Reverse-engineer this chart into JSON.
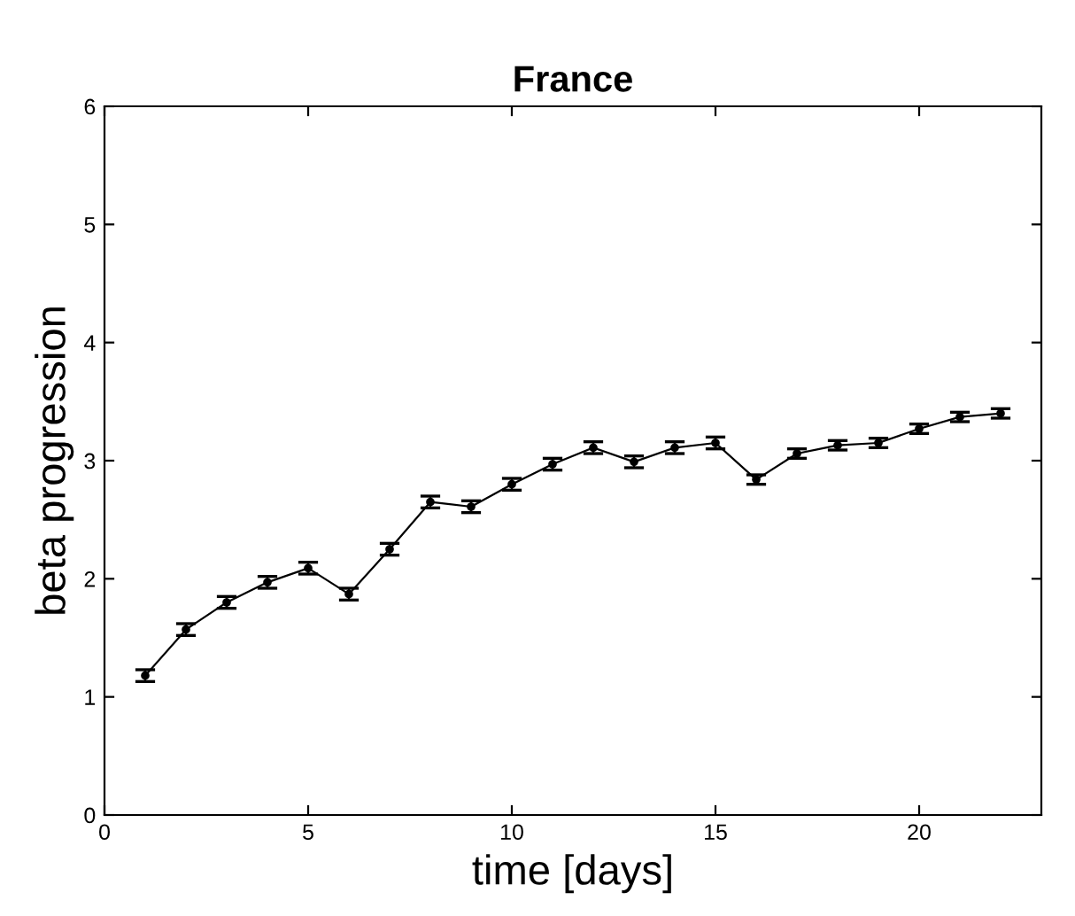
{
  "chart_data": {
    "type": "line",
    "title": "France",
    "xlabel": "time [days]",
    "ylabel": "beta progression",
    "x": [
      1,
      2,
      3,
      4,
      5,
      6,
      7,
      8,
      9,
      10,
      11,
      12,
      13,
      14,
      15,
      16,
      17,
      18,
      19,
      20,
      21,
      22
    ],
    "series": [
      {
        "color": "#000000",
        "values": [
          1.18,
          1.57,
          1.8,
          1.97,
          2.09,
          1.87,
          2.25,
          2.65,
          2.61,
          2.8,
          2.97,
          3.11,
          2.99,
          3.11,
          3.15,
          2.84,
          3.06,
          3.13,
          3.15,
          3.27,
          3.37,
          3.4
        ],
        "errors": [
          0.05,
          0.05,
          0.05,
          0.05,
          0.05,
          0.05,
          0.05,
          0.05,
          0.05,
          0.05,
          0.05,
          0.05,
          0.05,
          0.05,
          0.05,
          0.04,
          0.04,
          0.04,
          0.04,
          0.04,
          0.04,
          0.04
        ]
      }
    ],
    "xlim": [
      0,
      23
    ],
    "ylim": [
      0,
      6
    ],
    "xticks": [
      0,
      5,
      10,
      15,
      20
    ],
    "yticks": [
      0,
      1,
      2,
      3,
      4,
      5,
      6
    ],
    "marker": "circle",
    "line_style": "solid",
    "grid": false,
    "legend": false
  }
}
